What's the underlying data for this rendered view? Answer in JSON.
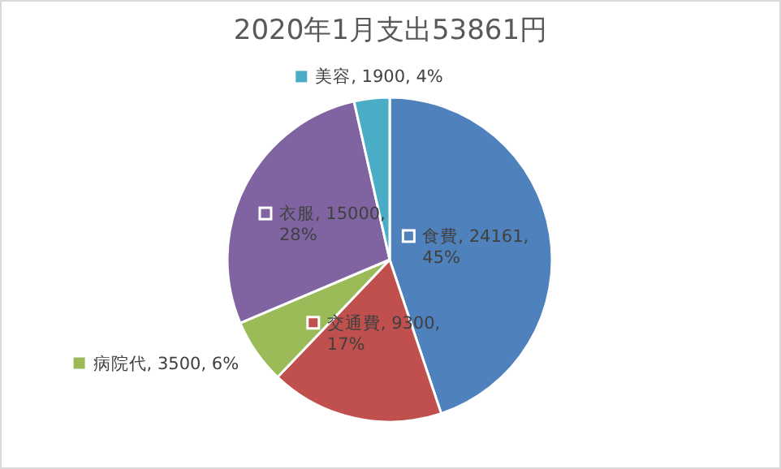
{
  "chart_data": {
    "type": "pie",
    "title": "2020年1月支出53861円",
    "categories": [
      "食費",
      "交通費",
      "病院代",
      "衣服",
      "美容"
    ],
    "values": [
      24161,
      9300,
      3500,
      15000,
      1900
    ],
    "colors": [
      "#4f81bd",
      "#c0504d",
      "#9bbb59",
      "#8064a2",
      "#4bacc6"
    ],
    "value_labels": [
      "24161, 45%",
      "9300, 17%",
      "3500, 6%",
      "15000, 28%",
      "1900, 4%"
    ],
    "legend": "center"
  }
}
